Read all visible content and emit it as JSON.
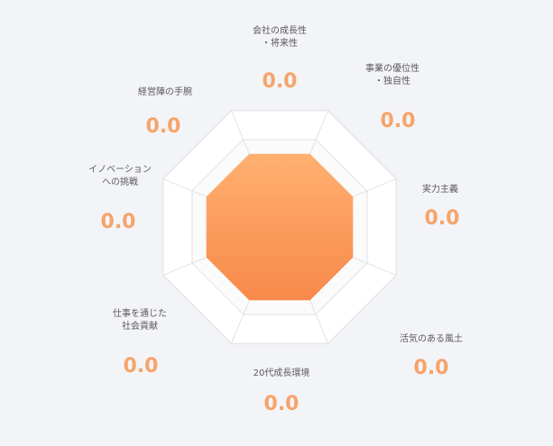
{
  "chart_data": {
    "type": "radar",
    "axes": [
      {
        "label": "会社の成長性\n・将来性",
        "value_text": "0.0"
      },
      {
        "label": "事業の優位性\n・独自性",
        "value_text": "0.0"
      },
      {
        "label": "実力主義",
        "value_text": "0.0"
      },
      {
        "label": "活気のある風土",
        "value_text": "0.0"
      },
      {
        "label": "20代成長環境",
        "value_text": "0.0"
      },
      {
        "label": "仕事を通じた\n社会貢献",
        "value_text": "0.0"
      },
      {
        "label": "イノベーション\nへの挑戦",
        "value_text": "0.0"
      },
      {
        "label": "経営陣の手腕",
        "value_text": "0.0"
      }
    ],
    "values": [
      0.0,
      0.0,
      0.0,
      0.0,
      0.0,
      0.0,
      0.0,
      0.0
    ],
    "range": [
      0,
      5
    ],
    "rings": 4,
    "colors": {
      "fill_start": "#ffb071",
      "fill_end": "#f7894a",
      "value_text": "#f6a46a",
      "grid": "#e2e2e2"
    }
  }
}
